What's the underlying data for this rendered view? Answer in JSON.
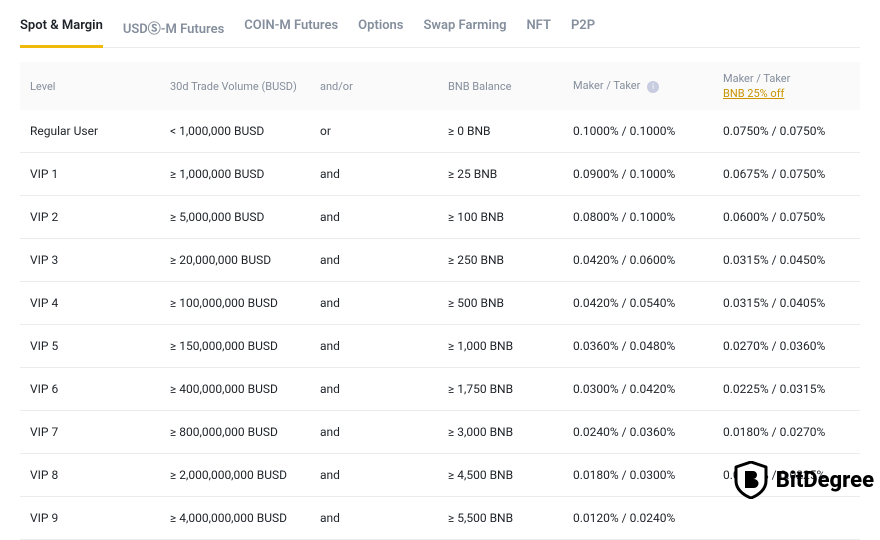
{
  "tabs": [
    {
      "label": "Spot & Margin",
      "active": true
    },
    {
      "label": "USDⓈ-M Futures",
      "active": false
    },
    {
      "label": "COIN-M Futures",
      "active": false
    },
    {
      "label": "Options",
      "active": false
    },
    {
      "label": "Swap Farming",
      "active": false
    },
    {
      "label": "NFT",
      "active": false
    },
    {
      "label": "P2P",
      "active": false
    }
  ],
  "headers": {
    "level": "Level",
    "volume": "30d Trade Volume (BUSD)",
    "andor": "and/or",
    "balance": "BNB Balance",
    "maker_taker": "Maker / Taker",
    "maker_taker_disc": "Maker / Taker",
    "disc_link": "BNB 25% off"
  },
  "rows": [
    {
      "level": "Regular User",
      "volume": "< 1,000,000 BUSD",
      "andor": "or",
      "balance": "≥ 0 BNB",
      "mt": "0.1000% / 0.1000%",
      "mt_disc": "0.0750% / 0.0750%"
    },
    {
      "level": "VIP 1",
      "volume": "≥ 1,000,000 BUSD",
      "andor": "and",
      "balance": "≥ 25 BNB",
      "mt": "0.0900% / 0.1000%",
      "mt_disc": "0.0675% / 0.0750%"
    },
    {
      "level": "VIP 2",
      "volume": "≥ 5,000,000 BUSD",
      "andor": "and",
      "balance": "≥ 100 BNB",
      "mt": "0.0800% / 0.1000%",
      "mt_disc": "0.0600% / 0.0750%"
    },
    {
      "level": "VIP 3",
      "volume": "≥ 20,000,000 BUSD",
      "andor": "and",
      "balance": "≥ 250 BNB",
      "mt": "0.0420% / 0.0600%",
      "mt_disc": "0.0315% / 0.0450%"
    },
    {
      "level": "VIP 4",
      "volume": "≥ 100,000,000 BUSD",
      "andor": "and",
      "balance": "≥ 500 BNB",
      "mt": "0.0420% / 0.0540%",
      "mt_disc": "0.0315% / 0.0405%"
    },
    {
      "level": "VIP 5",
      "volume": "≥ 150,000,000 BUSD",
      "andor": "and",
      "balance": "≥ 1,000 BNB",
      "mt": "0.0360% / 0.0480%",
      "mt_disc": "0.0270% / 0.0360%"
    },
    {
      "level": "VIP 6",
      "volume": "≥ 400,000,000 BUSD",
      "andor": "and",
      "balance": "≥ 1,750 BNB",
      "mt": "0.0300% / 0.0420%",
      "mt_disc": "0.0225% / 0.0315%"
    },
    {
      "level": "VIP 7",
      "volume": "≥ 800,000,000 BUSD",
      "andor": "and",
      "balance": "≥ 3,000 BNB",
      "mt": "0.0240% / 0.0360%",
      "mt_disc": "0.0180% / 0.0270%"
    },
    {
      "level": "VIP 8",
      "volume": "≥ 2,000,000,000 BUSD",
      "andor": "and",
      "balance": "≥ 4,500 BNB",
      "mt": "0.0180% / 0.0300%",
      "mt_disc": "0.0135% / 0.0225%"
    },
    {
      "level": "VIP 9",
      "volume": "≥ 4,000,000,000 BUSD",
      "andor": "and",
      "balance": "≥ 5,500 BNB",
      "mt": "0.0120% / 0.0240%",
      "mt_disc": ""
    }
  ],
  "logo": {
    "text": "BitDegree"
  },
  "colors": {
    "accent": "#f0b90b",
    "text_muted": "#848e9c",
    "text": "#1e2329",
    "border": "#eaecef",
    "link": "#c99400",
    "header_bg": "#fafafa"
  }
}
